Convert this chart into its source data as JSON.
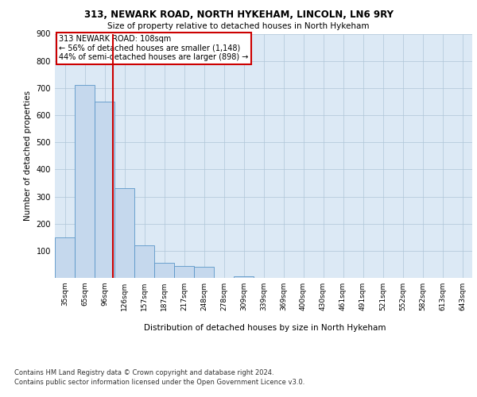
{
  "title": "313, NEWARK ROAD, NORTH HYKEHAM, LINCOLN, LN6 9RY",
  "subtitle": "Size of property relative to detached houses in North Hykeham",
  "xlabel": "Distribution of detached houses by size in North Hykeham",
  "ylabel": "Number of detached properties",
  "categories": [
    "35sqm",
    "65sqm",
    "96sqm",
    "126sqm",
    "157sqm",
    "187sqm",
    "217sqm",
    "248sqm",
    "278sqm",
    "309sqm",
    "339sqm",
    "369sqm",
    "400sqm",
    "430sqm",
    "461sqm",
    "491sqm",
    "521sqm",
    "552sqm",
    "582sqm",
    "613sqm",
    "643sqm"
  ],
  "values": [
    150,
    710,
    650,
    330,
    120,
    55,
    45,
    40,
    0,
    5,
    0,
    0,
    0,
    0,
    0,
    0,
    0,
    0,
    0,
    0,
    0
  ],
  "bar_color": "#c5d8ed",
  "bar_edge_color": "#5a96c8",
  "red_line_x": 2.4,
  "annotation_text": "313 NEWARK ROAD: 108sqm\n← 56% of detached houses are smaller (1,148)\n44% of semi-detached houses are larger (898) →",
  "ylim": [
    0,
    900
  ],
  "yticks": [
    0,
    100,
    200,
    300,
    400,
    500,
    600,
    700,
    800,
    900
  ],
  "background_color": "#dce9f5",
  "footer_line1": "Contains HM Land Registry data © Crown copyright and database right 2024.",
  "footer_line2": "Contains public sector information licensed under the Open Government Licence v3.0."
}
